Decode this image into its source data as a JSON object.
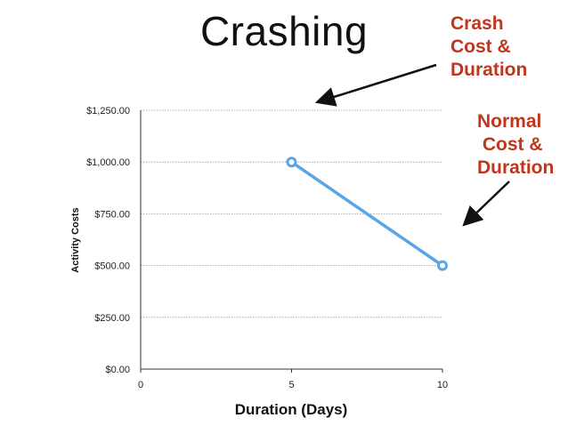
{
  "slide": {
    "title": "Crashing",
    "annotations": [
      {
        "lines": [
          "Crash",
          "Cost &",
          "Duration"
        ]
      },
      {
        "lines": [
          "Normal",
          " Cost &",
          "Duration"
        ]
      }
    ]
  },
  "chart_data": {
    "type": "line",
    "title": "",
    "xlabel": "Duration (Days)",
    "ylabel": "Activity Costs",
    "xlim": [
      0,
      10
    ],
    "ylim": [
      0,
      1250
    ],
    "x_ticks": [
      "0",
      "5",
      "10"
    ],
    "x_tick_values": [
      0,
      5,
      10
    ],
    "y_ticks": [
      "$0.00",
      "$250.00",
      "$500.00",
      "$750.00",
      "$1,000.00",
      "$1,250.00"
    ],
    "y_tick_values": [
      0,
      250,
      500,
      750,
      1000,
      1250
    ],
    "grid": true,
    "series": [
      {
        "color": "#5aa5e8",
        "points": [
          {
            "x": 5,
            "y": 1000
          },
          {
            "x": 10,
            "y": 500
          }
        ]
      }
    ],
    "colors": {
      "line": "#5aa5e8",
      "grid": "#999999",
      "annotation": "#c0361c"
    }
  }
}
